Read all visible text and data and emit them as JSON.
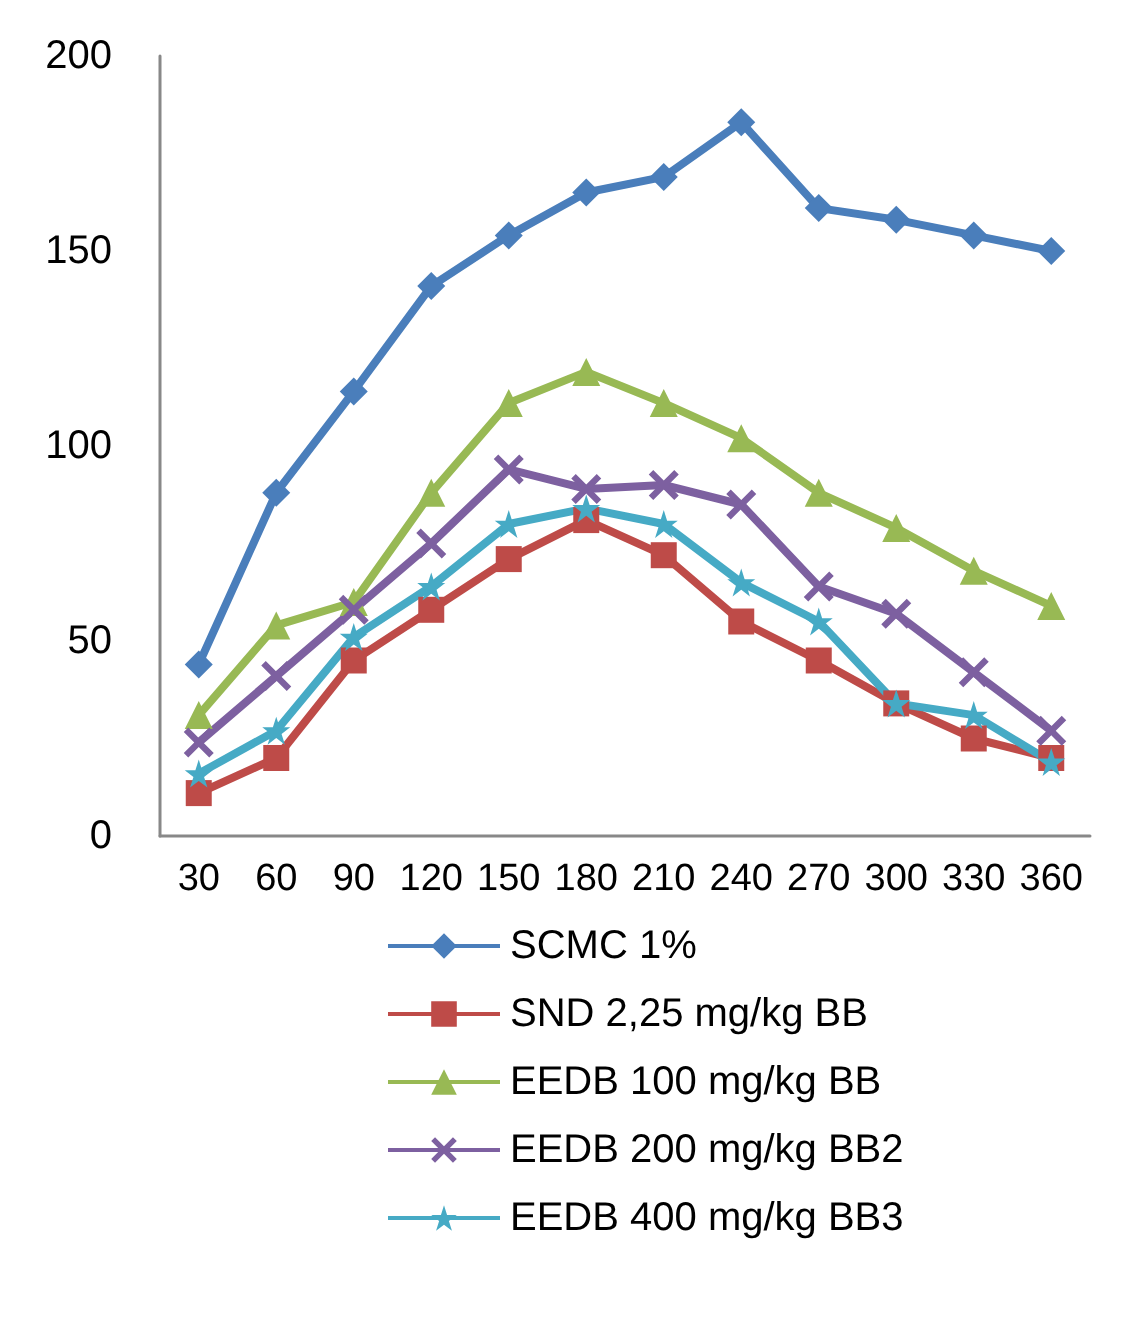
{
  "chart_data": {
    "type": "line",
    "categories": [
      "30",
      "60",
      "90",
      "120",
      "150",
      "180",
      "210",
      "240",
      "270",
      "300",
      "330",
      "360"
    ],
    "ylim": [
      0,
      200
    ],
    "yticks": [
      0,
      50,
      100,
      150,
      200
    ],
    "grid": false,
    "legend": "bottom",
    "series": [
      {
        "name": "SCMC 1%",
        "color": "#4a7ebb",
        "marker": "diamond",
        "values": [
          44,
          88,
          114,
          141,
          154,
          165,
          169,
          183,
          161,
          158,
          154,
          150
        ]
      },
      {
        "name": "SND 2,25 mg/kg BB",
        "color": "#be4b48",
        "marker": "square",
        "values": [
          11,
          20,
          45,
          58,
          71,
          81,
          72,
          55,
          45,
          34,
          25,
          20
        ]
      },
      {
        "name": "EEDB 100 mg/kg BB",
        "color": "#98b954",
        "marker": "triangle",
        "values": [
          31,
          54,
          60,
          88,
          111,
          119,
          111,
          102,
          88,
          79,
          68,
          59
        ]
      },
      {
        "name": "EEDB 200 mg/kg BB2",
        "color": "#7d60a0",
        "marker": "cross",
        "values": [
          24,
          41,
          58,
          75,
          94,
          89,
          90,
          85,
          64,
          57,
          42,
          27
        ]
      },
      {
        "name": "EEDB 400 mg/kg BB3",
        "color": "#46aac5",
        "marker": "star",
        "values": [
          16,
          27,
          51,
          64,
          80,
          84,
          80,
          65,
          55,
          34,
          31,
          19
        ]
      }
    ]
  }
}
